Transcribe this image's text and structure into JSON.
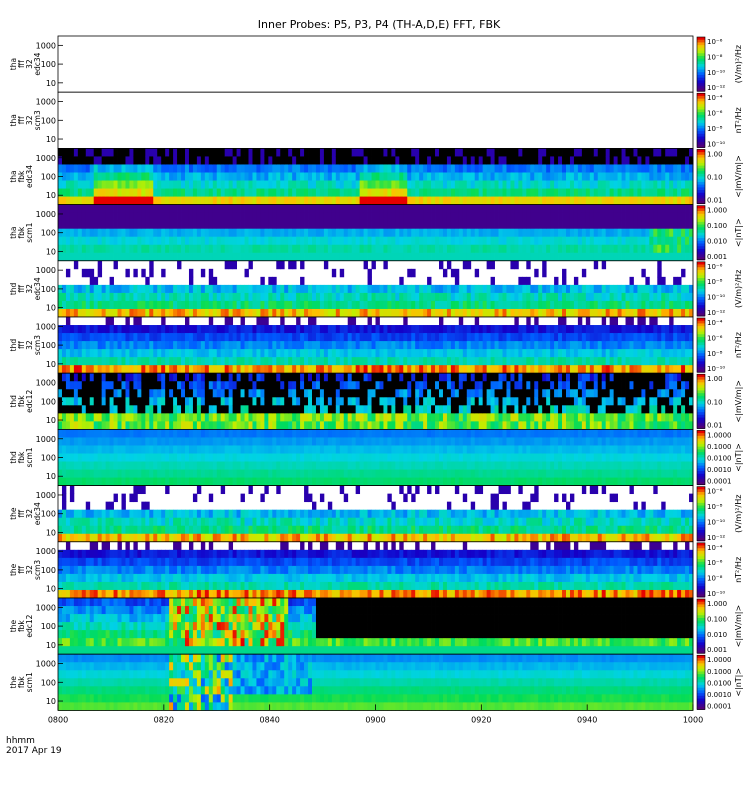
{
  "title": "Inner Probes: P5, P3, P4 (TH-A,D,E) FFT, FBK",
  "time_axis": {
    "header_label": "hhmm",
    "date_label": "2017 Apr 19",
    "ticks": [
      "0800",
      "0820",
      "0840",
      "0900",
      "0920",
      "0940",
      "1000"
    ]
  },
  "colors": {
    "background": "#ffffff",
    "axis": "#000000",
    "fill_no_data": "#000000"
  },
  "chart_data": {
    "type": "heatmap",
    "title": "Inner Probes: P5, P3, P4 (TH-A,D,E) FFT, FBK",
    "x_range": [
      "0800",
      "1000"
    ],
    "y_scale": "log",
    "panels": [
      {
        "label": [
          "tha",
          "fff",
          "32",
          "edc34"
        ],
        "yticks": [
          "1000",
          "100",
          "10"
        ],
        "unit": "(V/m)²/Hz",
        "cbar_ticks": [
          "10⁻⁶",
          "10⁻⁸",
          "10⁻¹⁰",
          "10⁻¹²"
        ],
        "style": "empty"
      },
      {
        "label": [
          "tha",
          "fff",
          "32",
          "scm3"
        ],
        "yticks": [
          "1000",
          "100",
          "10"
        ],
        "unit": "nT²/Hz",
        "cbar_ticks": [
          "10⁻⁴",
          "10⁻⁶",
          "10⁻⁸",
          "10⁻¹⁰"
        ],
        "style": "empty"
      },
      {
        "label": [
          "tha",
          "fbk",
          "edc34"
        ],
        "yticks": [
          "1000",
          "100",
          "10"
        ],
        "unit": "<|mV/m|>",
        "cbar_ticks": [
          "1.00",
          "0.10",
          "0.01"
        ],
        "style": "fbk_e1"
      },
      {
        "label": [
          "tha",
          "fbk",
          "scm1"
        ],
        "yticks": [
          "1000",
          "100",
          "10"
        ],
        "unit": "<|nT|>",
        "cbar_ticks": [
          "1.000",
          "0.100",
          "0.010",
          "0.001"
        ],
        "style": "fbk_b1"
      },
      {
        "label": [
          "thd",
          "fff",
          "32",
          "edc34"
        ],
        "yticks": [
          "1000",
          "100",
          "10"
        ],
        "unit": "(V/m)²/Hz",
        "cbar_ticks": [
          "10⁻⁶",
          "10⁻⁸",
          "10⁻¹⁰",
          "10⁻¹²"
        ],
        "style": "fff_e"
      },
      {
        "label": [
          "thd",
          "fff",
          "32",
          "scm3"
        ],
        "yticks": [
          "1000",
          "100",
          "10"
        ],
        "unit": "nT²/Hz",
        "cbar_ticks": [
          "10⁻⁴",
          "10⁻⁶",
          "10⁻⁸",
          "10⁻¹⁰"
        ],
        "style": "fff_b"
      },
      {
        "label": [
          "thd",
          "fbk",
          "edc12"
        ],
        "yticks": [
          "1000",
          "100",
          "10"
        ],
        "unit": "<|mV/m|>",
        "cbar_ticks": [
          "1.00",
          "0.10",
          "0.01"
        ],
        "style": "fbk_e2"
      },
      {
        "label": [
          "thd",
          "fbk",
          "scm1"
        ],
        "yticks": [
          "1000",
          "100",
          "10"
        ],
        "unit": "<|nT|>",
        "cbar_ticks": [
          "1.0000",
          "0.1000",
          "0.0100",
          "0.0010",
          "0.0001"
        ],
        "style": "fbk_b2"
      },
      {
        "label": [
          "the",
          "fff",
          "32",
          "edc34"
        ],
        "yticks": [
          "1000",
          "100",
          "10"
        ],
        "unit": "(V/m)²/Hz",
        "cbar_ticks": [
          "10⁻⁶",
          "10⁻⁸",
          "10⁻¹⁰",
          "10⁻¹²"
        ],
        "style": "fff_e"
      },
      {
        "label": [
          "the",
          "fff",
          "32",
          "scm3"
        ],
        "yticks": [
          "1000",
          "100",
          "10"
        ],
        "unit": "nT²/Hz",
        "cbar_ticks": [
          "10⁻⁴",
          "10⁻⁶",
          "10⁻⁸",
          "10⁻¹⁰"
        ],
        "style": "fff_b"
      },
      {
        "label": [
          "the",
          "fbk",
          "edc12"
        ],
        "yticks": [
          "1000",
          "100",
          "10"
        ],
        "unit": "<|mV/m|>",
        "cbar_ticks": [
          "1.000",
          "0.100",
          "0.010",
          "0.001"
        ],
        "style": "fbk_e3"
      },
      {
        "label": [
          "the",
          "fbk",
          "scm1"
        ],
        "yticks": [
          "1000",
          "100",
          "10"
        ],
        "unit": "<|nT|>",
        "cbar_ticks": [
          "1.0000",
          "0.1000",
          "0.0100",
          "0.0010",
          "0.0001"
        ],
        "style": "fbk_b3"
      }
    ]
  }
}
